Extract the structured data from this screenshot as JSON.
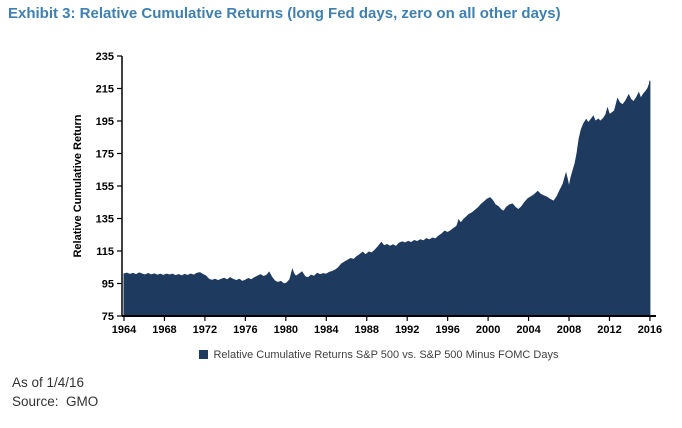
{
  "page": {
    "title": "Exhibit 3: Relative Cumulative Returns (long Fed days, zero on all other days)"
  },
  "footer": {
    "as_of": "As of 1/4/16",
    "source": "Source:  GMO"
  },
  "chart_data": {
    "type": "area",
    "title": "Exhibit 3: Relative Cumulative Returns (long Fed days, zero on all other days)",
    "xlabel": "",
    "ylabel": "Relative Cumulative Return",
    "legend_position": "bottom",
    "grid": false,
    "fill_color": "#1F3A5F",
    "axis_color": "#000000",
    "title_color": "#4080B0",
    "xlim": [
      1964,
      2016.6
    ],
    "ylim": [
      75,
      235
    ],
    "yticks": [
      75,
      95,
      115,
      135,
      155,
      175,
      195,
      215,
      235
    ],
    "xticks": [
      1964,
      1968,
      1972,
      1976,
      1980,
      1984,
      1988,
      1992,
      1996,
      2000,
      2004,
      2008,
      2012,
      2016
    ],
    "series": [
      {
        "name": "Relative Cumulative Returns S&P 500 vs. S&P 500 Minus FOMC Days",
        "points": [
          [
            1964.0,
            100.9
          ],
          [
            1964.3,
            101.4
          ],
          [
            1964.6,
            100.6
          ],
          [
            1964.9,
            101.2
          ],
          [
            1965.2,
            100.4
          ],
          [
            1965.5,
            101.5
          ],
          [
            1965.8,
            100.8
          ],
          [
            1966.1,
            100.2
          ],
          [
            1966.4,
            101.1
          ],
          [
            1966.7,
            100.3
          ],
          [
            1967.0,
            100.9
          ],
          [
            1967.3,
            100.1
          ],
          [
            1967.6,
            100.7
          ],
          [
            1967.9,
            99.9
          ],
          [
            1968.2,
            100.8
          ],
          [
            1968.5,
            100.2
          ],
          [
            1968.8,
            100.7
          ],
          [
            1969.1,
            99.8
          ],
          [
            1969.4,
            100.5
          ],
          [
            1969.7,
            99.6
          ],
          [
            1970.0,
            100.6
          ],
          [
            1970.3,
            99.9
          ],
          [
            1970.6,
            100.8
          ],
          [
            1970.9,
            100.1
          ],
          [
            1971.2,
            101.3
          ],
          [
            1971.5,
            101.7
          ],
          [
            1971.8,
            100.6
          ],
          [
            1972.1,
            99.6
          ],
          [
            1972.4,
            97.6
          ],
          [
            1972.7,
            96.9
          ],
          [
            1973.0,
            97.6
          ],
          [
            1973.3,
            96.8
          ],
          [
            1973.6,
            97.5
          ],
          [
            1973.9,
            98.2
          ],
          [
            1974.2,
            97.3
          ],
          [
            1974.5,
            98.6
          ],
          [
            1974.8,
            97.5
          ],
          [
            1975.1,
            96.8
          ],
          [
            1975.4,
            97.6
          ],
          [
            1975.7,
            96.3
          ],
          [
            1976.0,
            97.1
          ],
          [
            1976.3,
            98.0
          ],
          [
            1976.6,
            97.3
          ],
          [
            1976.9,
            98.6
          ],
          [
            1977.2,
            99.5
          ],
          [
            1977.5,
            100.4
          ],
          [
            1977.8,
            99.3
          ],
          [
            1978.1,
            100.0
          ],
          [
            1978.35,
            101.9
          ],
          [
            1978.6,
            99.0
          ],
          [
            1978.9,
            96.6
          ],
          [
            1979.2,
            95.6
          ],
          [
            1979.5,
            96.3
          ],
          [
            1979.8,
            94.8
          ],
          [
            1980.1,
            95.3
          ],
          [
            1980.4,
            97.5
          ],
          [
            1980.65,
            103.4
          ],
          [
            1980.8,
            101.0
          ],
          [
            1981.0,
            99.4
          ],
          [
            1981.3,
            100.8
          ],
          [
            1981.6,
            102.1
          ],
          [
            1981.9,
            99.2
          ],
          [
            1982.2,
            98.6
          ],
          [
            1982.5,
            100.1
          ],
          [
            1982.8,
            99.4
          ],
          [
            1983.1,
            101.3
          ],
          [
            1983.4,
            100.4
          ],
          [
            1983.7,
            101.1
          ],
          [
            1984.0,
            100.7
          ],
          [
            1984.3,
            101.9
          ],
          [
            1984.6,
            102.4
          ],
          [
            1984.9,
            103.3
          ],
          [
            1985.2,
            104.8
          ],
          [
            1985.5,
            107.0
          ],
          [
            1985.8,
            108.2
          ],
          [
            1986.1,
            109.3
          ],
          [
            1986.4,
            110.3
          ],
          [
            1986.7,
            109.8
          ],
          [
            1987.0,
            111.4
          ],
          [
            1987.3,
            112.8
          ],
          [
            1987.6,
            114.2
          ],
          [
            1987.9,
            112.6
          ],
          [
            1988.2,
            114.4
          ],
          [
            1988.5,
            113.8
          ],
          [
            1988.8,
            115.5
          ],
          [
            1989.1,
            117.5
          ],
          [
            1989.45,
            120.3
          ],
          [
            1989.7,
            118.2
          ],
          [
            1990.0,
            119.0
          ],
          [
            1990.3,
            117.9
          ],
          [
            1990.6,
            118.8
          ],
          [
            1990.9,
            117.8
          ],
          [
            1991.2,
            119.8
          ],
          [
            1991.5,
            120.6
          ],
          [
            1991.8,
            119.9
          ],
          [
            1992.1,
            120.9
          ],
          [
            1992.4,
            120.2
          ],
          [
            1992.7,
            121.4
          ],
          [
            1993.0,
            120.8
          ],
          [
            1993.3,
            121.9
          ],
          [
            1993.6,
            121.2
          ],
          [
            1993.9,
            122.6
          ],
          [
            1994.2,
            121.8
          ],
          [
            1994.5,
            123.0
          ],
          [
            1994.8,
            122.4
          ],
          [
            1995.1,
            124.2
          ],
          [
            1995.4,
            125.4
          ],
          [
            1995.7,
            127.2
          ],
          [
            1996.0,
            126.4
          ],
          [
            1996.3,
            127.5
          ],
          [
            1996.6,
            128.9
          ],
          [
            1996.9,
            130.3
          ],
          [
            1997.1,
            134.0
          ],
          [
            1997.3,
            132.2
          ],
          [
            1997.6,
            134.6
          ],
          [
            1997.8,
            135.7
          ],
          [
            1998.1,
            137.5
          ],
          [
            1998.4,
            138.4
          ],
          [
            1998.7,
            140.0
          ],
          [
            1999.0,
            141.5
          ],
          [
            1999.3,
            143.6
          ],
          [
            1999.6,
            145.2
          ],
          [
            1999.9,
            146.9
          ],
          [
            2000.2,
            147.8
          ],
          [
            2000.45,
            146.0
          ],
          [
            2000.7,
            143.5
          ],
          [
            2001.0,
            142.4
          ],
          [
            2001.3,
            140.3
          ],
          [
            2001.55,
            139.4
          ],
          [
            2001.8,
            141.9
          ],
          [
            2002.1,
            143.3
          ],
          [
            2002.4,
            144.0
          ],
          [
            2002.7,
            141.8
          ],
          [
            2003.0,
            140.5
          ],
          [
            2003.3,
            142.2
          ],
          [
            2003.6,
            144.8
          ],
          [
            2003.95,
            147.3
          ],
          [
            2004.3,
            148.6
          ],
          [
            2004.6,
            149.8
          ],
          [
            2004.9,
            151.7
          ],
          [
            2005.2,
            149.9
          ],
          [
            2005.5,
            149.0
          ],
          [
            2005.8,
            148.2
          ],
          [
            2006.1,
            146.9
          ],
          [
            2006.5,
            145.6
          ],
          [
            2006.8,
            148.4
          ],
          [
            2007.1,
            152.3
          ],
          [
            2007.4,
            156.1
          ],
          [
            2007.7,
            162.6
          ],
          [
            2007.85,
            158.9
          ],
          [
            2008.0,
            154.2
          ],
          [
            2008.2,
            160.3
          ],
          [
            2008.4,
            164.8
          ],
          [
            2008.6,
            168.9
          ],
          [
            2008.8,
            175.4
          ],
          [
            2009.0,
            183.9
          ],
          [
            2009.2,
            189.6
          ],
          [
            2009.45,
            193.4
          ],
          [
            2009.7,
            195.8
          ],
          [
            2009.9,
            193.9
          ],
          [
            2010.1,
            195.4
          ],
          [
            2010.4,
            197.9
          ],
          [
            2010.6,
            194.8
          ],
          [
            2010.9,
            196.2
          ],
          [
            2011.1,
            194.9
          ],
          [
            2011.4,
            196.6
          ],
          [
            2011.65,
            199.0
          ],
          [
            2011.8,
            202.7
          ],
          [
            2012.0,
            198.9
          ],
          [
            2012.2,
            199.8
          ],
          [
            2012.5,
            201.2
          ],
          [
            2012.8,
            208.6
          ],
          [
            2013.0,
            206.3
          ],
          [
            2013.3,
            204.9
          ],
          [
            2013.6,
            207.4
          ],
          [
            2013.9,
            211.0
          ],
          [
            2014.1,
            208.4
          ],
          [
            2014.4,
            206.8
          ],
          [
            2014.7,
            209.8
          ],
          [
            2014.9,
            212.3
          ],
          [
            2015.1,
            208.9
          ],
          [
            2015.35,
            211.6
          ],
          [
            2015.6,
            213.4
          ],
          [
            2015.8,
            215.2
          ],
          [
            2015.95,
            217.8
          ],
          [
            2016.0,
            219.8
          ]
        ]
      }
    ]
  }
}
